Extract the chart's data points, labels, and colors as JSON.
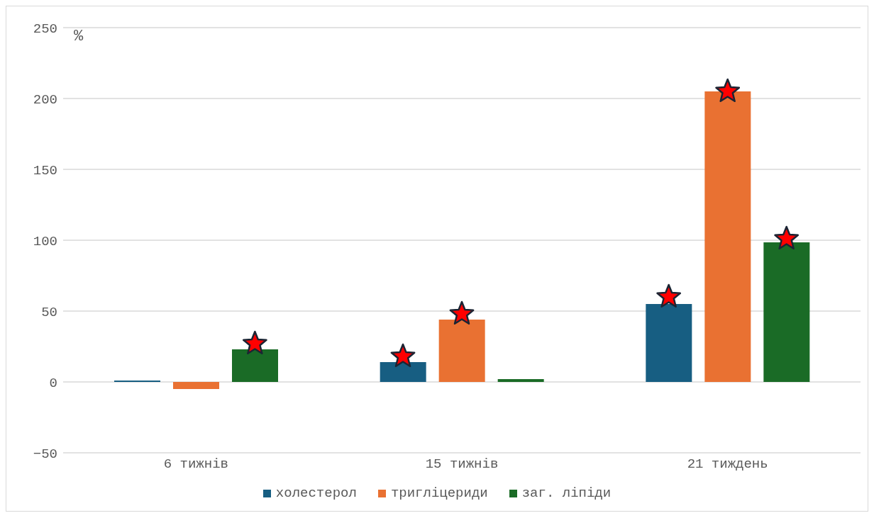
{
  "chart_data": {
    "type": "bar",
    "ylabel": "%",
    "categories": [
      "6 тижнів",
      "15 тижнів",
      "21 тиждень"
    ],
    "series": [
      {
        "name": "холестерол",
        "color": "#175e82",
        "values": [
          1,
          14,
          55
        ]
      },
      {
        "name": "тригліцериди",
        "color": "#e97132",
        "values": [
          -5,
          44,
          205
        ]
      },
      {
        "name": "заг. ліпіди",
        "color": "#1a6b26",
        "values": [
          23,
          2,
          98.5
        ]
      },
      {
        "type": "scatter",
        "marker": "star",
        "color": "#ff0000",
        "values": [
          null,
          18,
          60
        ]
      },
      {
        "type": "scatter",
        "marker": "star",
        "color": "#ff0000",
        "values": [
          null,
          48,
          205
        ]
      },
      {
        "type": "scatter",
        "marker": "star",
        "color": "#ff0000",
        "values": [
          27,
          null,
          101
        ]
      }
    ],
    "ylim": [
      -50,
      250
    ],
    "yticks": [
      -50,
      0,
      50,
      100,
      150,
      200,
      250
    ],
    "grid": "y",
    "legend": "bottom"
  }
}
